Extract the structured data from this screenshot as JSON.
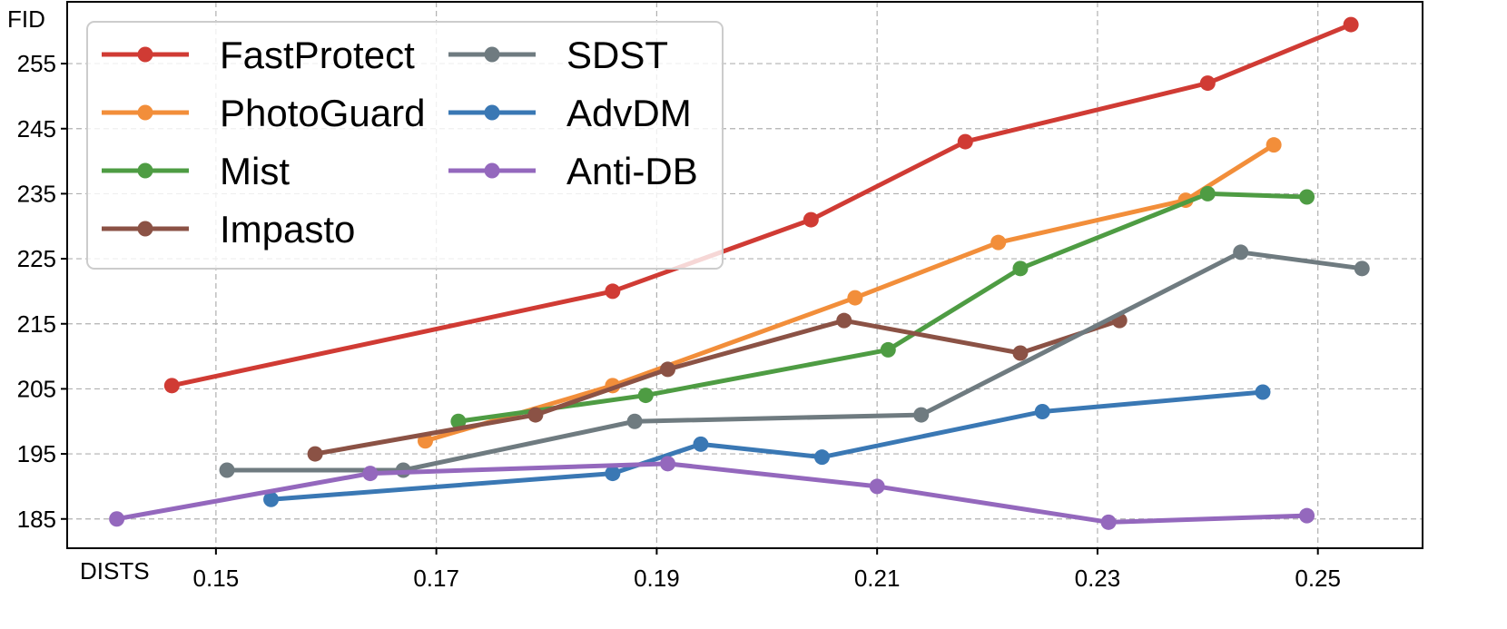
{
  "chart_data": {
    "type": "line",
    "title": "",
    "xlabel": "DISTS",
    "ylabel": "FID",
    "xlim": [
      0.1365,
      0.2595
    ],
    "ylim": [
      180.5,
      264.5
    ],
    "xticks": [
      0.15,
      0.17,
      0.19,
      0.21,
      0.23,
      0.25
    ],
    "xtick_labels": [
      "0.15",
      "0.17",
      "0.19",
      "0.21",
      "0.23",
      "0.25"
    ],
    "yticks": [
      185,
      195,
      205,
      215,
      225,
      235,
      245,
      255
    ],
    "ytick_labels": [
      "185",
      "195",
      "205",
      "215",
      "225",
      "235",
      "245",
      "255"
    ],
    "grid": true,
    "legend_position": "top-left",
    "series": [
      {
        "name": "FastProtect",
        "color": "#d03b34",
        "x": [
          0.146,
          0.186,
          0.204,
          0.218,
          0.24,
          0.253
        ],
        "y": [
          205.5,
          220.0,
          231.0,
          243.0,
          252.0,
          261.0
        ]
      },
      {
        "name": "PhotoGuard",
        "color": "#f28e3a",
        "x": [
          0.169,
          0.186,
          0.208,
          0.221,
          0.238,
          0.246
        ],
        "y": [
          197.0,
          205.5,
          219.0,
          227.5,
          234.0,
          242.5
        ]
      },
      {
        "name": "Mist",
        "color": "#4e9c43",
        "x": [
          0.172,
          0.189,
          0.211,
          0.223,
          0.24,
          0.249
        ],
        "y": [
          200.0,
          204.0,
          211.0,
          223.5,
          235.0,
          234.5
        ]
      },
      {
        "name": "Impasto",
        "color": "#8b5245",
        "x": [
          0.159,
          0.179,
          0.191,
          0.207,
          0.223,
          0.232
        ],
        "y": [
          195.0,
          201.0,
          208.0,
          215.5,
          210.5,
          215.5
        ]
      },
      {
        "name": "SDST",
        "color": "#6f7b80",
        "x": [
          0.151,
          0.167,
          0.188,
          0.214,
          0.243,
          0.254
        ],
        "y": [
          192.5,
          192.5,
          200.0,
          201.0,
          226.0,
          223.5
        ]
      },
      {
        "name": "AdvDM",
        "color": "#3a78b4",
        "x": [
          0.155,
          0.186,
          0.194,
          0.205,
          0.225,
          0.245
        ],
        "y": [
          188.0,
          192.0,
          196.5,
          194.5,
          201.5,
          204.5
        ]
      },
      {
        "name": "Anti-DB",
        "color": "#9468bd",
        "x": [
          0.141,
          0.164,
          0.191,
          0.21,
          0.231,
          0.249
        ],
        "y": [
          185.0,
          192.0,
          193.5,
          190.0,
          184.5,
          185.5
        ]
      }
    ]
  }
}
